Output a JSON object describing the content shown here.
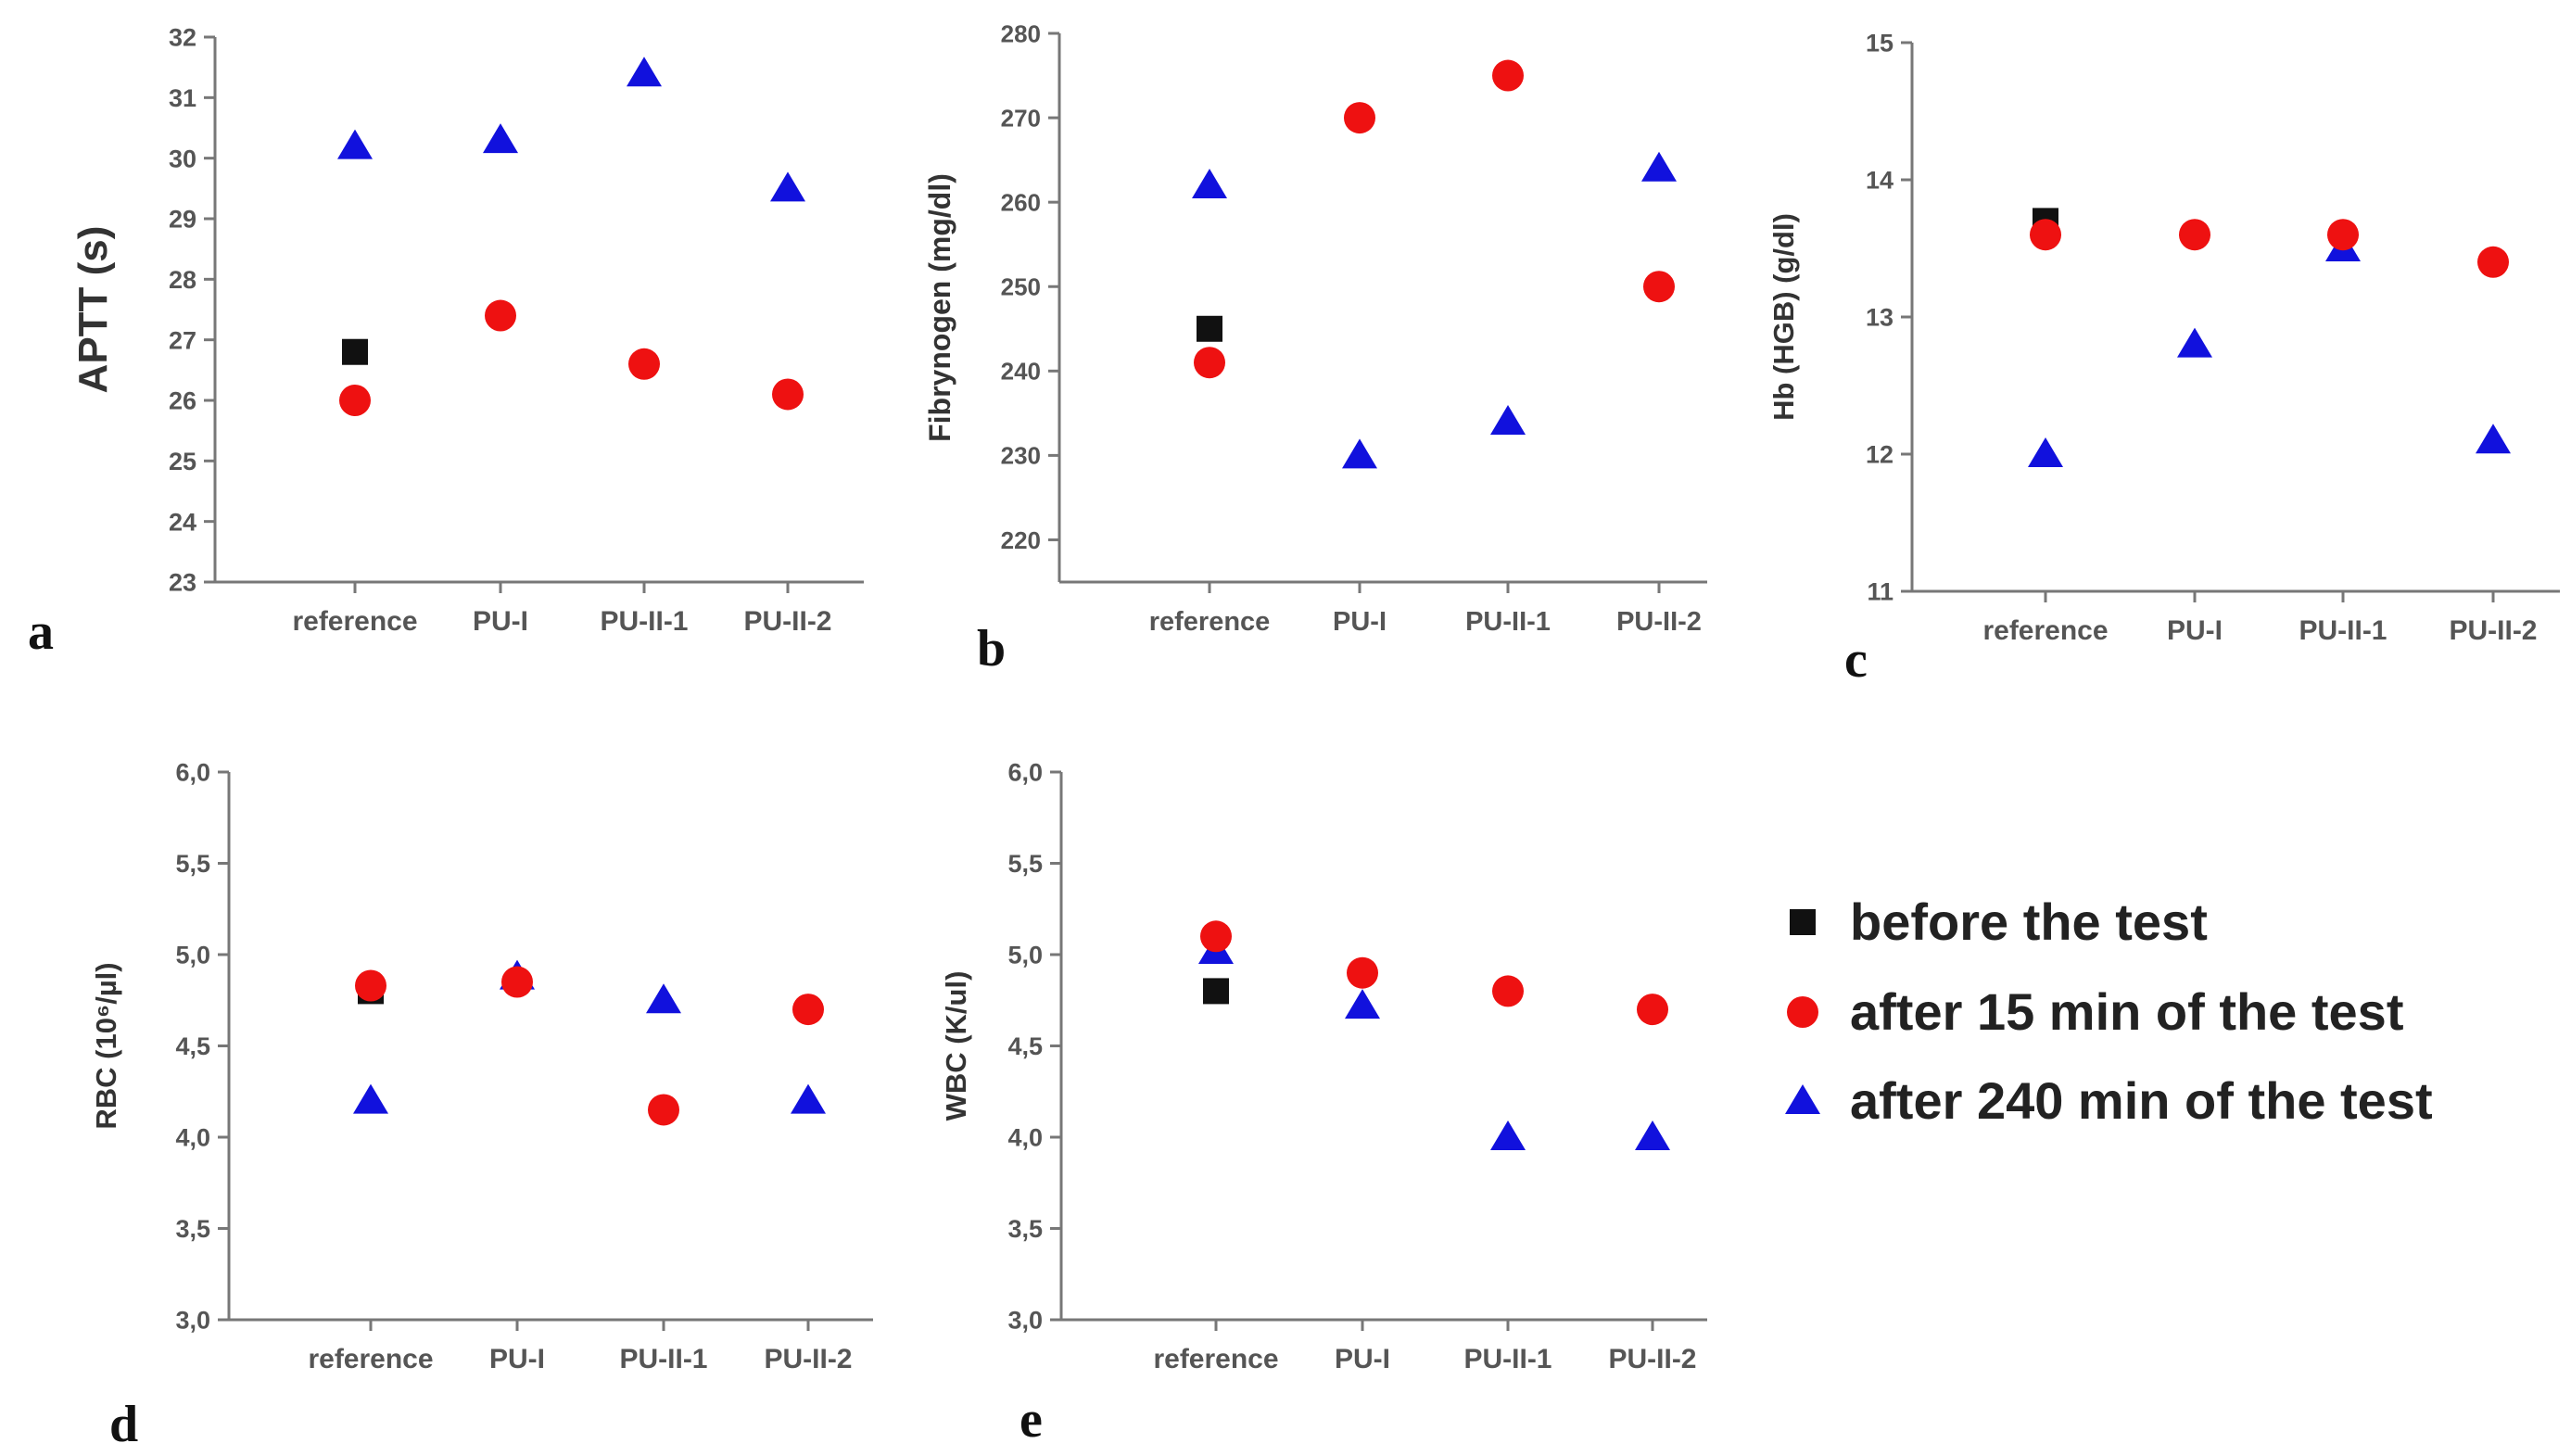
{
  "colors": {
    "before": "#111111",
    "after15": "#ee1111",
    "after240": "#1111dd",
    "axis": "#777777"
  },
  "legend": {
    "items": [
      {
        "key": "before",
        "marker": "square",
        "label": "before the test"
      },
      {
        "key": "after15",
        "marker": "circle",
        "label": "after 15 min of the test"
      },
      {
        "key": "after240",
        "marker": "triangle",
        "label": "after 240 min of the test"
      }
    ]
  },
  "chart_data": [
    {
      "id": "apptt",
      "panel": "a",
      "type": "scatter",
      "ylabel": "APTT (s)",
      "categories": [
        "reference",
        "PU-I",
        "PU-II-1",
        "PU-II-2"
      ],
      "ylim": [
        23,
        32
      ],
      "yticks": [
        "23",
        "24",
        "25",
        "26",
        "27",
        "28",
        "29",
        "30",
        "31",
        "32"
      ],
      "series": [
        {
          "key": "before",
          "name": "before the test",
          "values": [
            26.8,
            null,
            null,
            null
          ]
        },
        {
          "key": "after15",
          "name": "after 15 min of the test",
          "values": [
            26.0,
            27.4,
            26.6,
            26.1
          ]
        },
        {
          "key": "after240",
          "name": "after 240 min of the test",
          "values": [
            30.2,
            30.3,
            31.4,
            29.5
          ]
        }
      ]
    },
    {
      "id": "fibrynogen",
      "panel": "b",
      "type": "scatter",
      "ylabel": "Fibrynogen (mg/dl)",
      "categories": [
        "reference",
        "PU-I",
        "PU-II-1",
        "PU-II-2"
      ],
      "ylim": [
        215,
        280
      ],
      "yticks": [
        "220",
        "230",
        "240",
        "250",
        "260",
        "270",
        "280"
      ],
      "series": [
        {
          "key": "before",
          "name": "before the test",
          "values": [
            245,
            null,
            null,
            null
          ]
        },
        {
          "key": "after15",
          "name": "after 15 min of the test",
          "values": [
            241,
            270,
            275,
            250
          ]
        },
        {
          "key": "after240",
          "name": "after 240 min of the test",
          "values": [
            262,
            230,
            234,
            264
          ]
        }
      ]
    },
    {
      "id": "hb",
      "panel": "c",
      "type": "scatter",
      "ylabel": "Hb (HGB) (g/dl)",
      "categories": [
        "reference",
        "PU-I",
        "PU-II-1",
        "PU-II-2"
      ],
      "ylim": [
        11,
        15
      ],
      "yticks": [
        "11",
        "12",
        "13",
        "14",
        "15"
      ],
      "series": [
        {
          "key": "before",
          "name": "before the test",
          "values": [
            13.7,
            null,
            null,
            null
          ]
        },
        {
          "key": "after15",
          "name": "after 15 min of the test",
          "values": [
            13.6,
            13.6,
            13.6,
            13.4
          ]
        },
        {
          "key": "after240",
          "name": "after 240 min of the test",
          "values": [
            12.0,
            12.8,
            13.5,
            12.1
          ]
        }
      ]
    },
    {
      "id": "rbc",
      "panel": "d",
      "type": "scatter",
      "ylabel": "RBC (10⁶/µl)",
      "categories": [
        "reference",
        "PU-I",
        "PU-II-1",
        "PU-II-2"
      ],
      "ylim": [
        3.0,
        6.0
      ],
      "yticks": [
        "3,0",
        "3,5",
        "4,0",
        "4,5",
        "5,0",
        "5,5",
        "6,0"
      ],
      "series": [
        {
          "key": "before",
          "name": "before the test",
          "values": [
            4.8,
            null,
            null,
            null
          ]
        },
        {
          "key": "after15",
          "name": "after 15 min of the test",
          "values": [
            4.83,
            4.85,
            4.15,
            4.7
          ]
        },
        {
          "key": "after240",
          "name": "after 240 min of the test",
          "values": [
            4.2,
            4.88,
            4.75,
            4.2
          ]
        }
      ]
    },
    {
      "id": "wbc",
      "panel": "e",
      "type": "scatter",
      "ylabel": "WBC (K/ul)",
      "categories": [
        "reference",
        "PU-I",
        "PU-II-1",
        "PU-II-2"
      ],
      "ylim": [
        3.0,
        6.0
      ],
      "yticks": [
        "3,0",
        "3,5",
        "4,0",
        "4,5",
        "5,0",
        "5,5",
        "6,0"
      ],
      "series": [
        {
          "key": "before",
          "name": "before the test",
          "values": [
            4.8,
            null,
            null,
            null
          ]
        },
        {
          "key": "after15",
          "name": "after 15 min of the test",
          "values": [
            5.1,
            4.9,
            4.8,
            4.7
          ]
        },
        {
          "key": "after240",
          "name": "after 240 min of the test",
          "values": [
            5.02,
            4.72,
            4.0,
            4.0
          ]
        }
      ]
    }
  ]
}
